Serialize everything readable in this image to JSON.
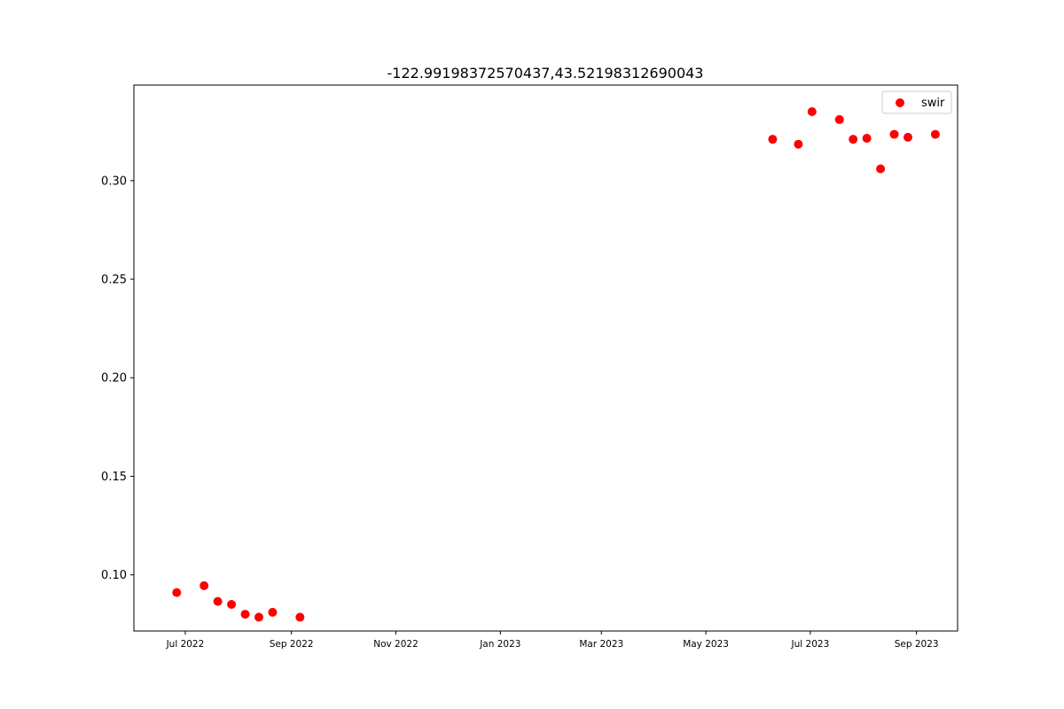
{
  "chart_data": {
    "type": "scatter",
    "title": "-122.99198372570437,43.52198312690043",
    "xlabel": "",
    "ylabel": "",
    "x_axis": "date",
    "xlim": [
      "2022-06-01",
      "2023-09-25"
    ],
    "ylim": [
      0.0715,
      0.3485
    ],
    "grid": false,
    "legend_position": "top-right",
    "x_ticks": [
      {
        "date": "2022-07-01",
        "label": "Jul 2022"
      },
      {
        "date": "2022-09-01",
        "label": "Sep 2022"
      },
      {
        "date": "2022-11-01",
        "label": "Nov 2022"
      },
      {
        "date": "2023-01-01",
        "label": "Jan 2023"
      },
      {
        "date": "2023-03-01",
        "label": "Mar 2023"
      },
      {
        "date": "2023-05-01",
        "label": "May 2023"
      },
      {
        "date": "2023-07-01",
        "label": "Jul 2023"
      },
      {
        "date": "2023-09-01",
        "label": "Sep 2023"
      }
    ],
    "y_ticks": [
      {
        "value": 0.1,
        "label": "0.10"
      },
      {
        "value": 0.15,
        "label": "0.15"
      },
      {
        "value": 0.2,
        "label": "0.20"
      },
      {
        "value": 0.25,
        "label": "0.25"
      },
      {
        "value": 0.3,
        "label": "0.30"
      }
    ],
    "series": [
      {
        "name": "swir",
        "color": "#ff0000",
        "points": [
          {
            "x": "2022-06-26",
            "y": 0.091
          },
          {
            "x": "2022-07-12",
            "y": 0.0945
          },
          {
            "x": "2022-07-20",
            "y": 0.0865
          },
          {
            "x": "2022-07-28",
            "y": 0.085
          },
          {
            "x": "2022-08-05",
            "y": 0.08
          },
          {
            "x": "2022-08-13",
            "y": 0.0785
          },
          {
            "x": "2022-08-21",
            "y": 0.081
          },
          {
            "x": "2022-09-06",
            "y": 0.0785
          },
          {
            "x": "2023-06-09",
            "y": 0.321
          },
          {
            "x": "2023-06-24",
            "y": 0.3185
          },
          {
            "x": "2023-07-02",
            "y": 0.335
          },
          {
            "x": "2023-07-18",
            "y": 0.331
          },
          {
            "x": "2023-07-26",
            "y": 0.321
          },
          {
            "x": "2023-08-03",
            "y": 0.3215
          },
          {
            "x": "2023-08-11",
            "y": 0.306
          },
          {
            "x": "2023-08-19",
            "y": 0.3235
          },
          {
            "x": "2023-08-27",
            "y": 0.322
          },
          {
            "x": "2023-09-12",
            "y": 0.3235
          }
        ]
      }
    ]
  }
}
